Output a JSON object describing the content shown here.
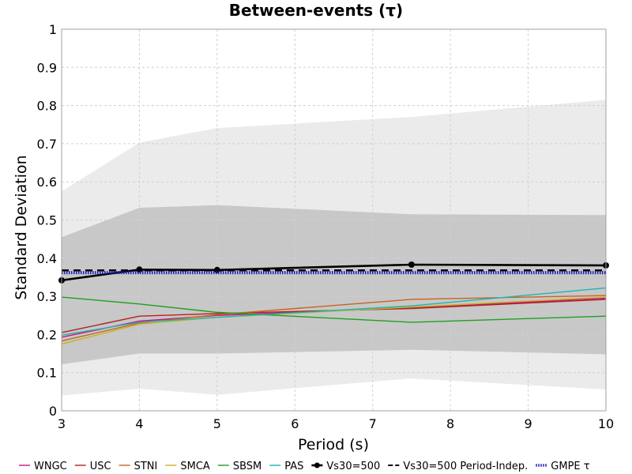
{
  "chart_data": {
    "type": "line",
    "title": "Between-events (τ)",
    "xlabel": "Period (s)",
    "ylabel": "Standard Deviation",
    "xlim": [
      3,
      10
    ],
    "ylim": [
      0,
      1
    ],
    "xticks": [
      3,
      4,
      5,
      6,
      7,
      8,
      9,
      10
    ],
    "yticks": [
      0,
      0.1,
      0.2,
      0.3,
      0.4,
      0.5,
      0.6,
      0.7,
      0.8,
      0.9,
      1
    ],
    "ytick_labels": [
      "0",
      "0.1",
      "0.2",
      "0.3",
      "0.4",
      "0.5",
      "0.6",
      "0.7",
      "0.8",
      "0.9",
      "1"
    ],
    "grid": true,
    "legend_position": "bottom",
    "bands": [
      {
        "x": [
          3,
          4,
          5,
          7.5,
          10
        ],
        "lower": [
          0.04,
          0.058,
          0.042,
          0.085,
          0.056
        ],
        "upper": [
          0.575,
          0.703,
          0.741,
          0.77,
          0.815
        ],
        "color": "#ebebeb"
      },
      {
        "x": [
          3,
          4,
          5,
          7.5,
          10
        ],
        "lower": [
          0.122,
          0.15,
          0.15,
          0.16,
          0.148
        ],
        "upper": [
          0.455,
          0.532,
          0.539,
          0.515,
          0.513
        ],
        "color": "#c8c8c8"
      }
    ],
    "series": [
      {
        "name": "WNGC",
        "color": "#c71585",
        "style": "solid",
        "width": 1.4,
        "x": [
          3,
          4,
          5,
          7.5,
          10
        ],
        "values": [
          0.193,
          0.235,
          0.25,
          0.27,
          0.295
        ]
      },
      {
        "name": "USC",
        "color": "#b22222",
        "style": "solid",
        "width": 1.4,
        "x": [
          3,
          4,
          5,
          7.5,
          10
        ],
        "values": [
          0.205,
          0.248,
          0.255,
          0.268,
          0.292
        ]
      },
      {
        "name": "STNI",
        "color": "#c8641e",
        "style": "solid",
        "width": 1.4,
        "x": [
          3,
          4,
          5,
          7.5,
          10
        ],
        "values": [
          0.183,
          0.23,
          0.252,
          0.292,
          0.302
        ]
      },
      {
        "name": "SMCA",
        "color": "#c8b41e",
        "style": "solid",
        "width": 1.4,
        "x": [
          3,
          4,
          5,
          7.5,
          10
        ],
        "values": [
          0.175,
          0.227,
          0.245,
          0.272,
          0.298
        ]
      },
      {
        "name": "SBSM",
        "color": "#1ea01e",
        "style": "solid",
        "width": 1.4,
        "x": [
          3,
          4,
          5,
          7.5,
          10
        ],
        "values": [
          0.298,
          0.28,
          0.258,
          0.232,
          0.248
        ]
      },
      {
        "name": "PAS",
        "color": "#1eb4b4",
        "style": "solid",
        "width": 1.4,
        "x": [
          3,
          4,
          5,
          7.5,
          10
        ],
        "values": [
          0.198,
          0.232,
          0.245,
          0.275,
          0.322
        ]
      },
      {
        "name": "Vs30=500",
        "color": "#000000",
        "style": "solid-markers",
        "width": 2.6,
        "x": [
          3,
          4,
          5,
          7.5,
          10
        ],
        "values": [
          0.342,
          0.37,
          0.369,
          0.383,
          0.381
        ]
      },
      {
        "name": "Vs30=500 Period-Indep.",
        "color": "#000000",
        "style": "dashed",
        "width": 2.4,
        "x": [
          3,
          10
        ],
        "values": [
          0.368,
          0.368
        ]
      },
      {
        "name": "GMPE τ",
        "color": "#1e1eb4",
        "style": "dotted",
        "width": 4,
        "x": [
          3,
          10
        ],
        "values": [
          0.362,
          0.362
        ]
      }
    ]
  }
}
